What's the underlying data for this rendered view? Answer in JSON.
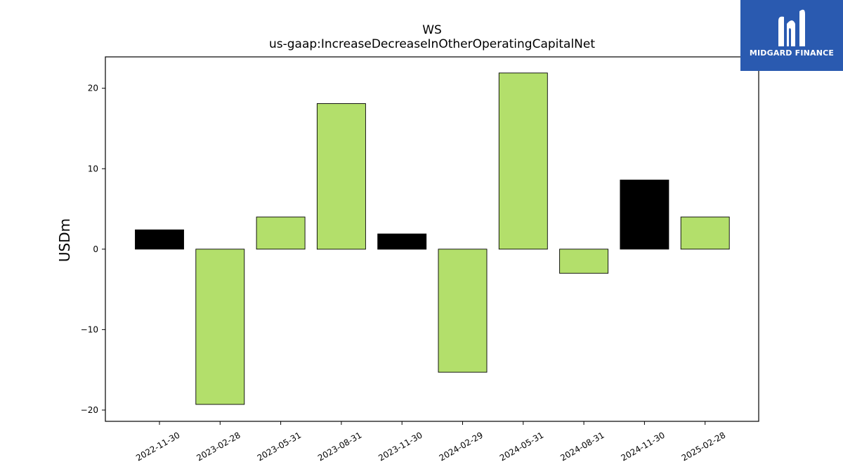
{
  "brand": {
    "name": "MIDGARD FINANCE",
    "color": "#2a5ab0"
  },
  "colors": {
    "positive_series": "#b3df6b",
    "highlight": "#000000"
  },
  "chart_data": {
    "type": "bar",
    "title": "WS",
    "subtitle": "us-gaap:IncreaseDecreaseInOtherOperatingCapitalNet",
    "xlabel": "",
    "ylabel": "USDm",
    "ylim": [
      -21.4,
      23.9
    ],
    "yticks": [
      -20,
      -10,
      0,
      10,
      20
    ],
    "ytick_labels": [
      "−20",
      "−10",
      "0",
      "10",
      "20"
    ],
    "grid": false,
    "categories": [
      "2022-11-30",
      "2023-02-28",
      "2023-05-31",
      "2023-08-31",
      "2023-11-30",
      "2024-02-29",
      "2024-05-31",
      "2024-08-31",
      "2024-11-30",
      "2025-02-28"
    ],
    "values": [
      2.4,
      -19.3,
      4.0,
      18.1,
      1.9,
      -15.3,
      21.9,
      -3.0,
      8.6,
      4.0
    ],
    "bar_colors": [
      "#000000",
      "#b3df6b",
      "#b3df6b",
      "#b3df6b",
      "#000000",
      "#b3df6b",
      "#b3df6b",
      "#b3df6b",
      "#000000",
      "#b3df6b"
    ]
  }
}
